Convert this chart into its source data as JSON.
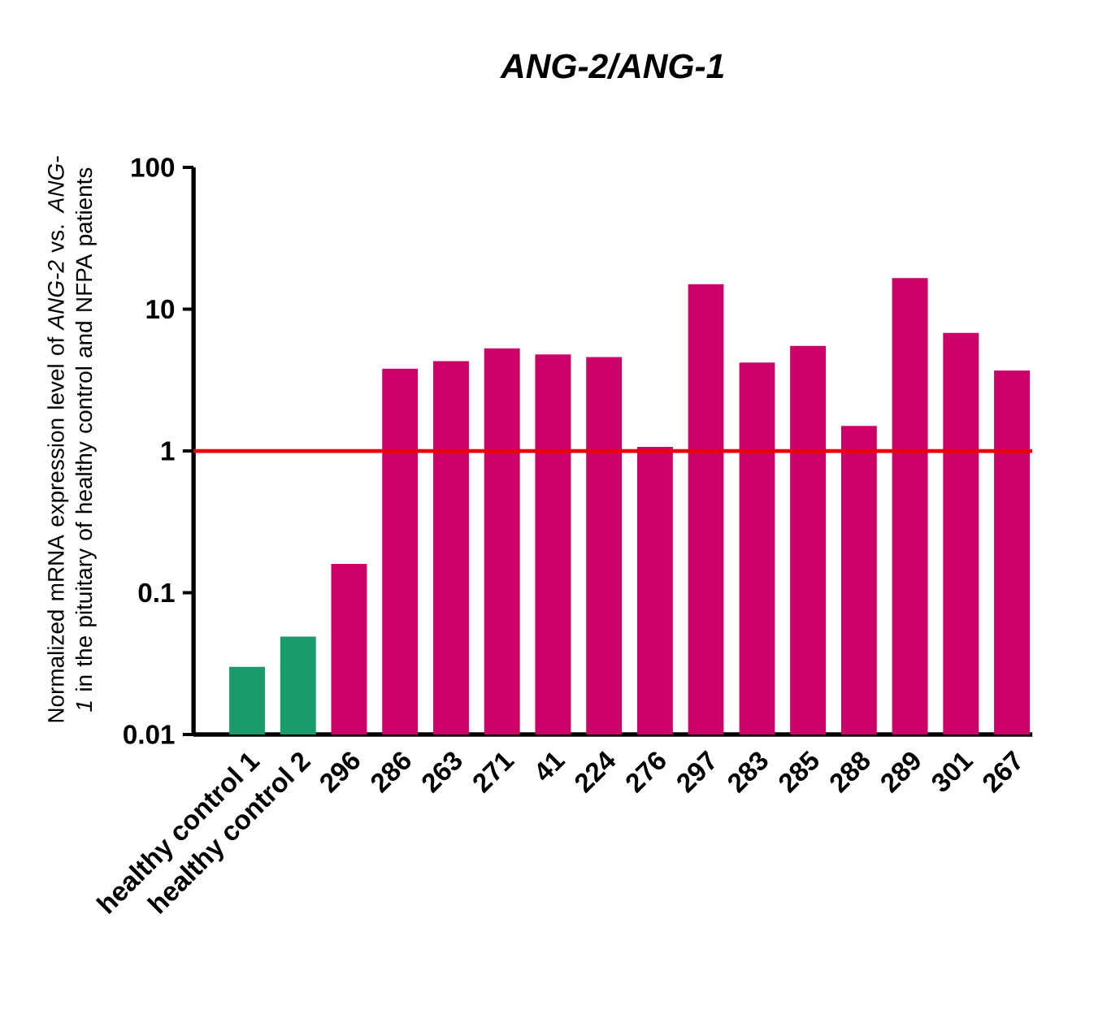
{
  "chart_data": {
    "type": "bar",
    "title": "ANG-2/ANG-1",
    "ylabel": "Normalized mRNA expression level of *ANG-2* vs. *ANG-1* in the pituitary of healthy control and NFPA patients",
    "categories": [
      "healthy control 1",
      "healthy control 2",
      "296",
      "286",
      "263",
      "271",
      "41",
      "224",
      "276",
      "297",
      "283",
      "285",
      "288",
      "289",
      "301",
      "267"
    ],
    "values": [
      0.03,
      0.049,
      0.16,
      3.8,
      4.3,
      5.3,
      4.8,
      4.6,
      1.07,
      15,
      4.2,
      5.5,
      1.5,
      16.6,
      6.8,
      3.7
    ],
    "colors": [
      "#1a9b6c",
      "#1a9b6c",
      "#cc0066",
      "#cc0066",
      "#cc0066",
      "#cc0066",
      "#cc0066",
      "#cc0066",
      "#cc0066",
      "#cc0066",
      "#cc0066",
      "#cc0066",
      "#cc0066",
      "#cc0066",
      "#cc0066",
      "#cc0066"
    ],
    "log": "y",
    "ylim": [
      0.01,
      100
    ],
    "yticks": [
      0.01,
      0.1,
      1,
      10,
      100
    ],
    "grid": false,
    "ref_lines": [
      {
        "axis": "y",
        "value": 1,
        "color": "#e8000b"
      }
    ]
  }
}
